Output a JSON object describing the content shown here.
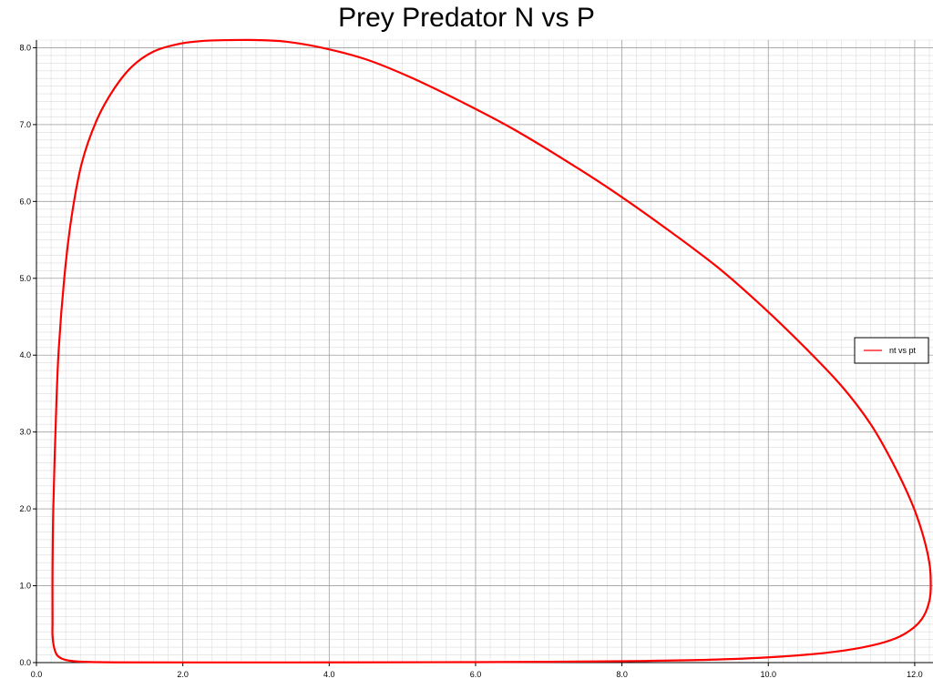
{
  "chart_data": {
    "type": "line",
    "title": "Prey Predator N vs P",
    "xlabel": "",
    "ylabel": "",
    "xlim": [
      0.0,
      12.25
    ],
    "ylim": [
      0.0,
      8.1
    ],
    "x_major_ticks": [
      0.0,
      2.0,
      4.0,
      6.0,
      8.0,
      10.0,
      12.0
    ],
    "y_major_ticks": [
      0.0,
      1.0,
      2.0,
      3.0,
      4.0,
      5.0,
      6.0,
      7.0,
      8.0
    ],
    "x_tick_labels": [
      "0.0",
      "2.0",
      "4.0",
      "6.0",
      "8.0",
      "10.0",
      "12.0"
    ],
    "y_tick_labels": [
      "0.0",
      "1.0",
      "2.0",
      "3.0",
      "4.0",
      "5.0",
      "6.0",
      "7.0",
      "8.0"
    ],
    "grid": true,
    "minor_grid": true,
    "legend_position": "right",
    "series": [
      {
        "name": "nt vs pt",
        "color": "#ff0000",
        "x": [
          0.22,
          0.22,
          0.23,
          0.26,
          0.3,
          0.38,
          0.48,
          0.62,
          0.82,
          1.05,
          1.3,
          1.6,
          1.95,
          2.3,
          2.7,
          3.0,
          3.4,
          3.9,
          4.5,
          5.1,
          5.8,
          6.5,
          7.2,
          7.9,
          8.6,
          9.3,
          9.9,
          10.5,
          11.0,
          11.4,
          11.7,
          11.95,
          12.1,
          12.2,
          12.22,
          12.2,
          12.12,
          11.98,
          11.75,
          11.4,
          10.9,
          10.2,
          9.3,
          8.2,
          7.0,
          5.5,
          4.0,
          2.5,
          1.2,
          0.8,
          0.6,
          0.45,
          0.35,
          0.28,
          0.24,
          0.22,
          0.22
        ],
        "y": [
          0.5,
          1.2,
          2.0,
          3.0,
          4.0,
          5.0,
          5.8,
          6.5,
          7.05,
          7.45,
          7.75,
          7.95,
          8.05,
          8.09,
          8.1,
          8.1,
          8.08,
          8.0,
          7.85,
          7.62,
          7.3,
          6.95,
          6.55,
          6.12,
          5.65,
          5.15,
          4.65,
          4.1,
          3.6,
          3.1,
          2.6,
          2.1,
          1.7,
          1.3,
          1.0,
          0.8,
          0.6,
          0.45,
          0.32,
          0.22,
          0.14,
          0.08,
          0.04,
          0.02,
          0.01,
          0.005,
          0.003,
          0.002,
          0.003,
          0.006,
          0.012,
          0.025,
          0.05,
          0.1,
          0.2,
          0.35,
          0.5
        ]
      }
    ]
  }
}
